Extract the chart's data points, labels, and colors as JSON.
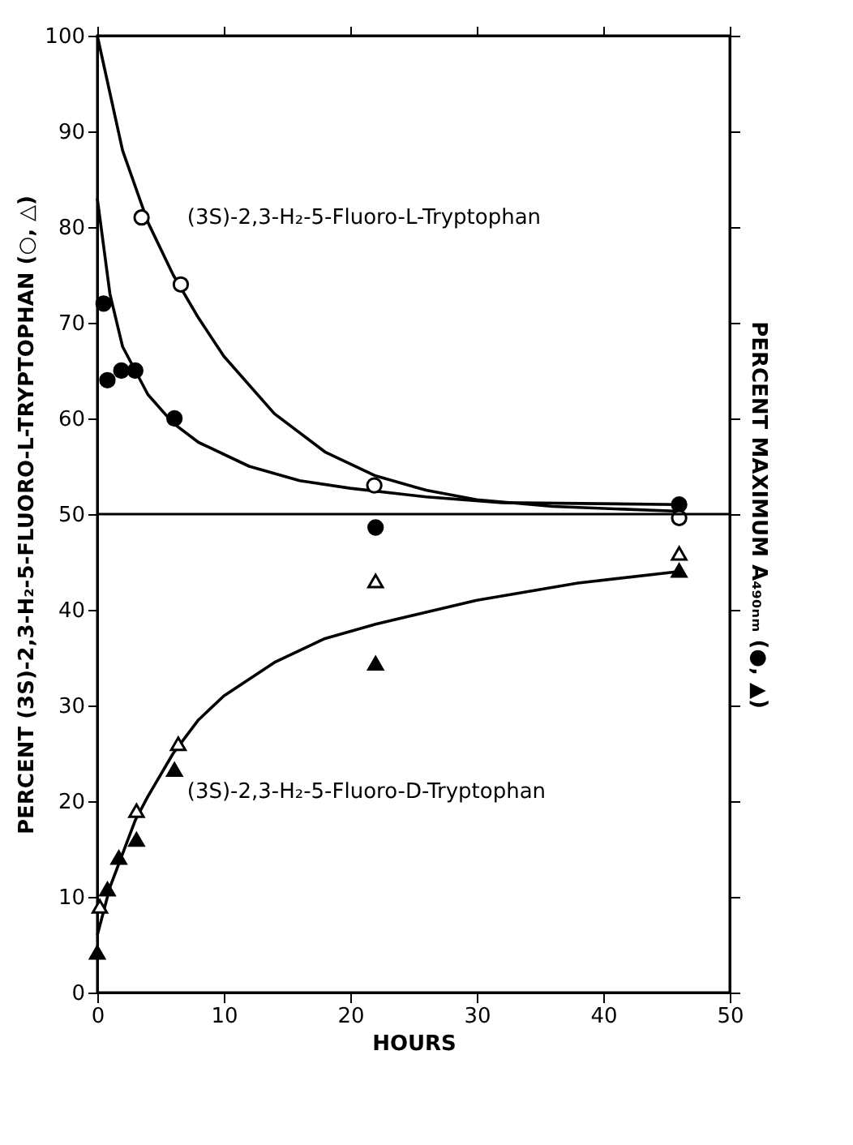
{
  "chart_data": {
    "type": "scatter",
    "xlabel": "HOURS",
    "ylabel": "PERCENT (3S)-2,3-H₂-5-FLUORO-L-TRYPTOPHAN (○, △)",
    "y2label": "PERCENT MAXIMUM A₄₉₀ₙₘ (●, ▲)",
    "xlim": [
      0,
      50
    ],
    "xticks": [
      0,
      10,
      20,
      30,
      40,
      50
    ],
    "ylim": [
      0,
      100
    ],
    "yticks": [
      0,
      10,
      20,
      30,
      40,
      50,
      60,
      70,
      80,
      90,
      100
    ],
    "grid": false,
    "ref_lines": [
      {
        "axis": "y",
        "value": 50,
        "label": null,
        "color": "#000000",
        "line_style": "solid"
      }
    ],
    "annotations": [
      "(3S)-2,3-H₂-5-Fluoro-L-Tryptophan",
      "(3S)-2,3-H₂-5-Fluoro-D-Tryptophan"
    ],
    "series": [
      {
        "type": "line",
        "color": "#000000",
        "line_style": "solid",
        "marker": "none",
        "x": [
          0,
          2,
          4,
          6,
          8,
          10,
          14,
          18,
          22,
          26,
          30,
          36,
          46
        ],
        "values": [
          100,
          88,
          80.5,
          75,
          70.5,
          66.5,
          60.5,
          56.5,
          54,
          52.5,
          51.5,
          50.8,
          50.3
        ]
      },
      {
        "type": "line",
        "color": "#000000",
        "line_style": "solid",
        "marker": "none",
        "x": [
          0,
          1,
          2,
          4,
          6,
          8,
          12,
          16,
          20,
          26,
          32,
          46
        ],
        "values": [
          83,
          73,
          67.5,
          62.5,
          59.5,
          57.5,
          55,
          53.5,
          52.7,
          51.8,
          51.2,
          51
        ]
      },
      {
        "type": "line",
        "color": "#000000",
        "line_style": "solid",
        "marker": "none",
        "x": [
          0,
          1,
          2,
          3,
          4,
          6,
          8,
          10,
          14,
          18,
          22,
          30,
          38,
          46
        ],
        "values": [
          6,
          11,
          14.5,
          18,
          20.5,
          25,
          28.5,
          31,
          34.5,
          37,
          38.5,
          41,
          42.8,
          44
        ]
      },
      {
        "color": "#000000",
        "marker": "circle",
        "x": [
          0.5,
          0.8,
          1.9,
          3,
          6.1,
          22,
          46
        ],
        "values": [
          72,
          64,
          65,
          65,
          60,
          48.6,
          51
        ]
      },
      {
        "color": "#ffffff",
        "marker": "circle",
        "x": [
          3.5,
          6.6,
          21.9,
          46
        ],
        "values": [
          81,
          74,
          53,
          49.6
        ]
      },
      {
        "color": "#000000",
        "marker": "triangle",
        "x": [
          0,
          0.8,
          1.7,
          3.1,
          6.1,
          22,
          46
        ],
        "values": [
          4.2,
          10.8,
          14.1,
          16,
          23.3,
          34.4,
          44.1
        ]
      },
      {
        "color": "#ffffff",
        "marker": "triangle",
        "x": [
          0.2,
          3.1,
          6.4,
          22,
          46
        ],
        "values": [
          9,
          19,
          26,
          43,
          45.9
        ]
      }
    ]
  }
}
